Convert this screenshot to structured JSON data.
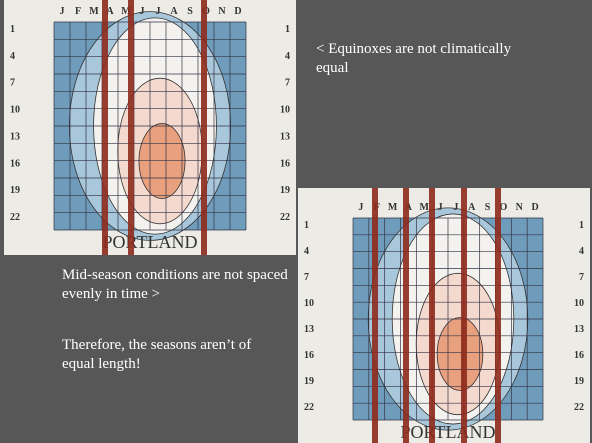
{
  "slide": {
    "note_top": "< Equinoxes are not climatically equal",
    "note_middle": "Mid-season conditions are not spaced evenly in time >",
    "note_bottom": "Therefore, the seasons aren’t of equal length!"
  },
  "chart_photo": {
    "months": [
      "J",
      "F",
      "M",
      "A",
      "M",
      "J",
      "J",
      "A",
      "S",
      "O",
      "N",
      "D"
    ],
    "hours": [
      1,
      4,
      7,
      10,
      13,
      16,
      19,
      22
    ],
    "city": "PORTLAND"
  }
}
